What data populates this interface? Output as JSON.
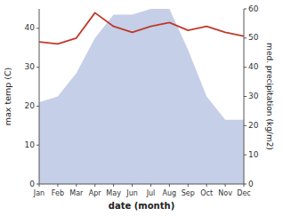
{
  "chart_data": {
    "type": "line",
    "xlabel": "date (month)",
    "ylabel": "max temp (C)",
    "y2label": "med. precipitation (kg/m2)",
    "categories": [
      "Jan",
      "Feb",
      "Mar",
      "Apr",
      "May",
      "Jun",
      "Jul",
      "Aug",
      "Sep",
      "Oct",
      "Nov",
      "Dec"
    ],
    "series": [
      {
        "type": "area",
        "axis": "y2",
        "color": "#c5cfe8",
        "values": [
          28,
          30,
          38,
          50,
          58,
          58,
          60,
          60,
          46,
          30,
          22,
          22
        ]
      },
      {
        "type": "line",
        "color": "#c0392b",
        "values": [
          36.5,
          36.0,
          37.5,
          44.0,
          40.5,
          39.0,
          40.5,
          41.5,
          39.5,
          40.5,
          39.0,
          38.0
        ]
      }
    ],
    "ylim": [
      0,
      45
    ],
    "yticks": [
      0,
      10,
      20,
      30,
      40
    ],
    "y2lim": [
      0,
      60
    ],
    "y2ticks": [
      0,
      10,
      20,
      30,
      40,
      50,
      60
    ],
    "grid": false
  }
}
